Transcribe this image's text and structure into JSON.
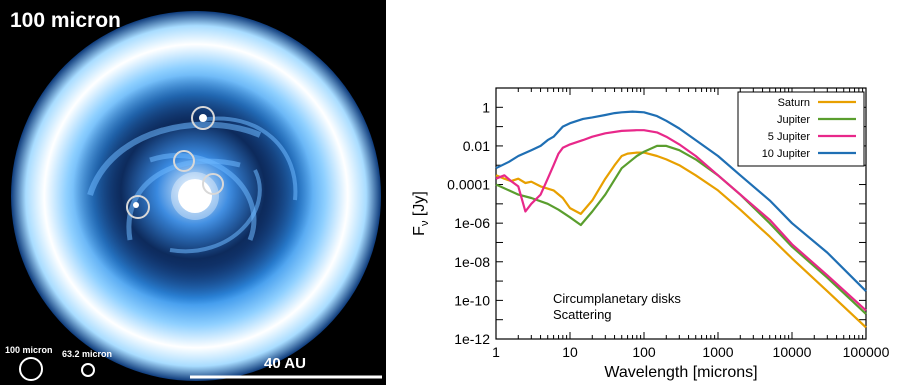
{
  "image_panel": {
    "title": "100 micron",
    "scale_bar_label": "40 AU",
    "beam_labels": [
      "100 micron",
      "63.2 micron"
    ]
  },
  "chart_data": {
    "type": "line",
    "xlabel": "Wavelength [microns]",
    "ylabel": "F",
    "ylabel_subscript": "ν",
    "ylabel_unit": "[Jy]",
    "x_scale": "log",
    "y_scale": "log",
    "xlim": [
      1,
      100000
    ],
    "ylim": [
      1e-12,
      10
    ],
    "x_ticks": [
      1,
      10,
      100,
      1000,
      10000,
      100000
    ],
    "x_tick_labels": [
      "1",
      "10",
      "100",
      "1000",
      "10000",
      "100000"
    ],
    "y_ticks": [
      1e-12,
      1e-10,
      1e-08,
      1e-06,
      0.0001,
      0.01,
      1
    ],
    "y_tick_labels": [
      "1e-12",
      "1e-10",
      "1e-08",
      "1e-06",
      "0.0001",
      "0.01",
      "1"
    ],
    "legend_position": "top-right",
    "annotation": [
      "Circumplanetary disks",
      "Scattering"
    ],
    "grid": false,
    "series": [
      {
        "name": "Saturn",
        "color": "#e8a000",
        "points": [
          [
            1,
            0.0003
          ],
          [
            1.3,
            0.0002
          ],
          [
            1.6,
            0.00015
          ],
          [
            2,
            0.0002
          ],
          [
            2.5,
            0.00012
          ],
          [
            3,
            0.00014
          ],
          [
            4,
            8e-05
          ],
          [
            6,
            5e-05
          ],
          [
            8,
            2e-05
          ],
          [
            10,
            6e-06
          ],
          [
            14,
            3e-06
          ],
          [
            20,
            1.5e-05
          ],
          [
            30,
            0.0002
          ],
          [
            40,
            0.001
          ],
          [
            50,
            0.003
          ],
          [
            60,
            0.004
          ],
          [
            80,
            0.0045
          ],
          [
            100,
            0.0045
          ],
          [
            150,
            0.003
          ],
          [
            200,
            0.002
          ],
          [
            300,
            0.001
          ],
          [
            500,
            0.0003
          ],
          [
            1000,
            5e-05
          ],
          [
            2000,
            5e-06
          ],
          [
            5000,
            2e-07
          ],
          [
            10000,
            1.5e-08
          ],
          [
            30000,
            3e-10
          ],
          [
            100000,
            4e-12
          ]
        ]
      },
      {
        "name": "Jupiter",
        "color": "#5a9e2e",
        "points": [
          [
            1,
            0.0001
          ],
          [
            1.5,
            5e-05
          ],
          [
            2,
            3e-05
          ],
          [
            3,
            2e-05
          ],
          [
            5,
            1e-05
          ],
          [
            7,
            5e-06
          ],
          [
            10,
            2e-06
          ],
          [
            14,
            8e-07
          ],
          [
            20,
            4e-06
          ],
          [
            30,
            3e-05
          ],
          [
            50,
            0.0007
          ],
          [
            80,
            0.003
          ],
          [
            100,
            0.005
          ],
          [
            150,
            0.01
          ],
          [
            200,
            0.01
          ],
          [
            300,
            0.006
          ],
          [
            500,
            0.002
          ],
          [
            1000,
            0.0003
          ],
          [
            2000,
            3e-05
          ],
          [
            5000,
            1e-06
          ],
          [
            10000,
            6e-08
          ],
          [
            30000,
            1.5e-09
          ],
          [
            100000,
            2e-11
          ]
        ]
      },
      {
        "name": "5 Jupiter",
        "color": "#e8288a",
        "points": [
          [
            1,
            0.0002
          ],
          [
            1.3,
            0.0003
          ],
          [
            1.6,
            0.00015
          ],
          [
            2,
            8e-05
          ],
          [
            2.5,
            4e-06
          ],
          [
            3,
            1e-05
          ],
          [
            4,
            3e-05
          ],
          [
            5,
            0.0002
          ],
          [
            6,
            0.001
          ],
          [
            7,
            0.004
          ],
          [
            8,
            0.008
          ],
          [
            10,
            0.012
          ],
          [
            15,
            0.02
          ],
          [
            20,
            0.03
          ],
          [
            30,
            0.045
          ],
          [
            50,
            0.06
          ],
          [
            80,
            0.065
          ],
          [
            100,
            0.065
          ],
          [
            150,
            0.05
          ],
          [
            200,
            0.03
          ],
          [
            300,
            0.012
          ],
          [
            500,
            0.003
          ],
          [
            1000,
            0.0003
          ],
          [
            2000,
            3e-05
          ],
          [
            5000,
            1.5e-06
          ],
          [
            10000,
            8e-08
          ],
          [
            30000,
            2e-09
          ],
          [
            100000,
            3e-11
          ]
        ]
      },
      {
        "name": "10 Jupiter",
        "color": "#1f6fb4",
        "points": [
          [
            1,
            0.0007
          ],
          [
            1.5,
            0.0015
          ],
          [
            2,
            0.003
          ],
          [
            3,
            0.006
          ],
          [
            4,
            0.01
          ],
          [
            5,
            0.02
          ],
          [
            6,
            0.03
          ],
          [
            8,
            0.1
          ],
          [
            10,
            0.15
          ],
          [
            15,
            0.25
          ],
          [
            20,
            0.3
          ],
          [
            30,
            0.4
          ],
          [
            40,
            0.5
          ],
          [
            50,
            0.55
          ],
          [
            70,
            0.6
          ],
          [
            100,
            0.55
          ],
          [
            150,
            0.35
          ],
          [
            200,
            0.2
          ],
          [
            300,
            0.08
          ],
          [
            500,
            0.02
          ],
          [
            1000,
            0.003
          ],
          [
            2000,
            0.0003
          ],
          [
            5000,
            1.5e-05
          ],
          [
            10000,
            1e-06
          ],
          [
            30000,
            3e-08
          ],
          [
            100000,
            3e-10
          ]
        ]
      }
    ]
  }
}
